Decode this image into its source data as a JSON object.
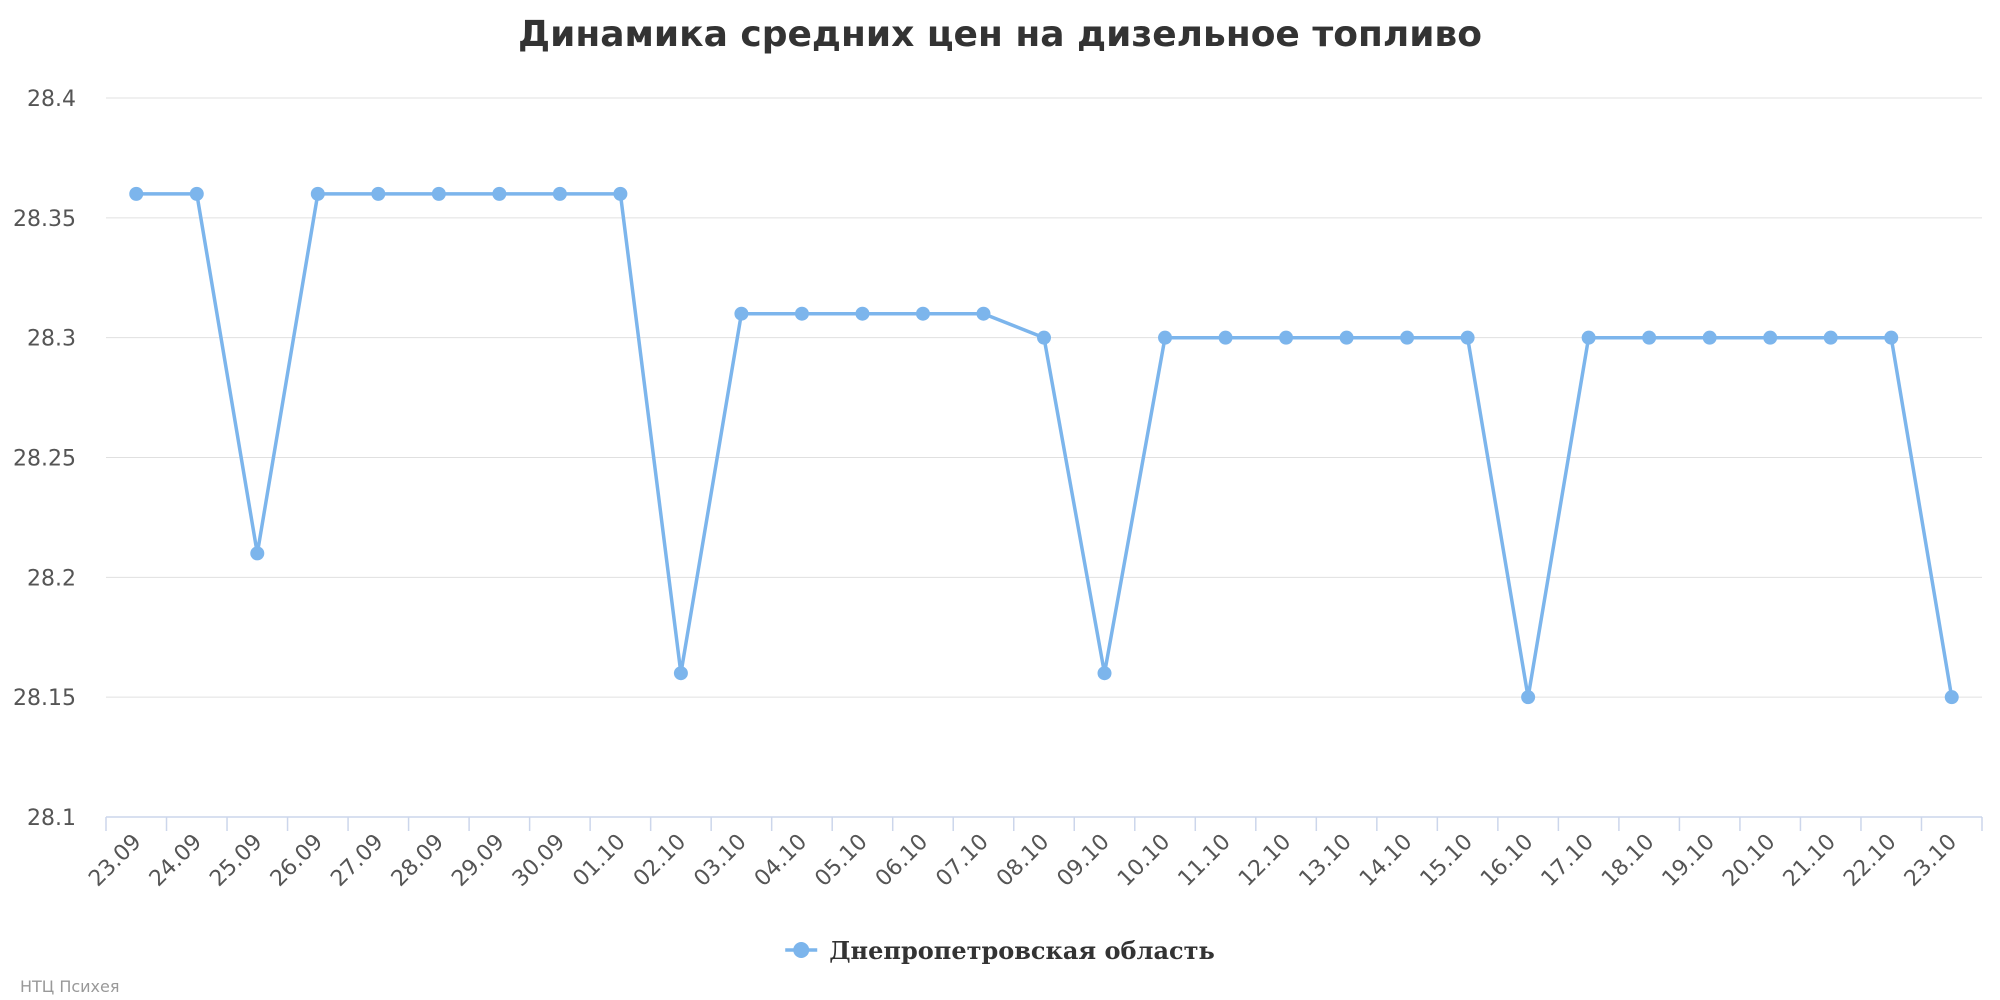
{
  "chart_data": {
    "type": "line",
    "title": "Динамика средних цен на дизельное топливо",
    "xlabel": "",
    "ylabel": "",
    "ylim": [
      28.1,
      28.4
    ],
    "yticks": [
      "28.1",
      "28.15",
      "28.2",
      "28.25",
      "28.3",
      "28.35",
      "28.4"
    ],
    "grid": true,
    "legend_position": "bottom-center",
    "categories": [
      "23.09",
      "24.09",
      "25.09",
      "26.09",
      "27.09",
      "28.09",
      "29.09",
      "30.09",
      "01.10",
      "02.10",
      "03.10",
      "04.10",
      "05.10",
      "06.10",
      "07.10",
      "08.10",
      "09.10",
      "10.10",
      "11.10",
      "12.10",
      "13.10",
      "14.10",
      "15.10",
      "16.10",
      "17.10",
      "18.10",
      "19.10",
      "20.10",
      "21.10",
      "22.10",
      "23.10"
    ],
    "series": [
      {
        "name": "Днепропетровская область",
        "color": "#7cb5ec",
        "values": [
          28.36,
          28.36,
          28.21,
          28.36,
          28.36,
          28.36,
          28.36,
          28.36,
          28.36,
          28.16,
          28.31,
          28.31,
          28.31,
          28.31,
          28.31,
          28.3,
          28.16,
          28.3,
          28.3,
          28.3,
          28.3,
          28.3,
          28.3,
          28.15,
          28.3,
          28.3,
          28.3,
          28.3,
          28.3,
          28.3,
          28.15
        ]
      }
    ]
  },
  "credit": "НТЦ Психея"
}
